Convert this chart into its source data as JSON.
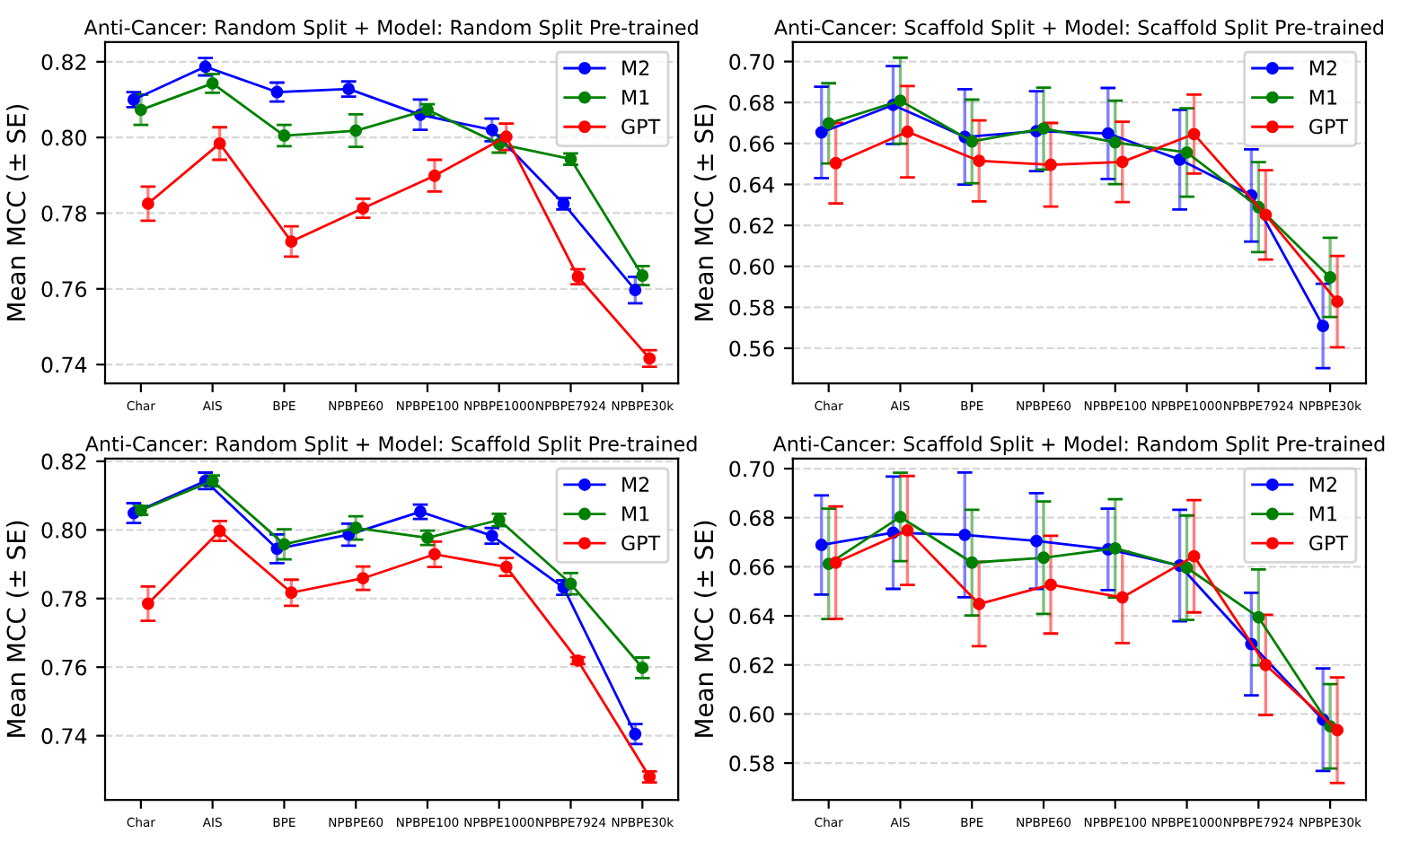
{
  "chart_data": [
    {
      "type": "line",
      "title": "Anti-Cancer: Random Split + Model: Random Split Pre-trained",
      "ylabel": "Mean MCC (± SE)",
      "categories": [
        "Char",
        "AIS",
        "BPE",
        "NPBPE60",
        "NPBPE100",
        "NPBPE1000",
        "NPBPE7924",
        "NPBPE30k"
      ],
      "ylim": [
        0.735,
        0.8252
      ],
      "yticks": [
        {
          "value": 0.74,
          "label": "0.74"
        },
        {
          "value": 0.76,
          "label": "0.76"
        },
        {
          "value": 0.78,
          "label": "0.78"
        },
        {
          "value": 0.8,
          "label": "0.80"
        },
        {
          "value": 0.82,
          "label": "0.82"
        }
      ],
      "grid": "y",
      "legend": "top right",
      "marker": "circle",
      "line_style": "solid",
      "series": [
        {
          "name": "M2",
          "color": "#0000ff",
          "values": [
            0.81,
            0.8187,
            0.812,
            0.8128,
            0.806,
            0.802,
            0.7825,
            0.7597
          ],
          "errors": [
            0.002,
            0.0023,
            0.0025,
            0.002,
            0.004,
            0.003,
            0.0015,
            0.0035
          ]
        },
        {
          "name": "M1",
          "color": "#008000",
          "values": [
            0.8073,
            0.8143,
            0.8005,
            0.8018,
            0.8073,
            0.7983,
            0.7943,
            0.7635
          ],
          "errors": [
            0.004,
            0.0025,
            0.0028,
            0.0043,
            0.0015,
            0.0023,
            0.0015,
            0.0025
          ]
        },
        {
          "name": "GPT",
          "color": "#ff0000",
          "values": [
            0.7825,
            0.7984,
            0.7725,
            0.7813,
            0.7899,
            0.8002,
            0.7632,
            0.7416
          ],
          "errors": [
            0.0045,
            0.0043,
            0.004,
            0.0025,
            0.0042,
            0.0035,
            0.002,
            0.0022
          ]
        }
      ]
    },
    {
      "type": "line",
      "title": "Anti-Cancer: Scaffold Split + Model: Scaffold Split Pre-trained",
      "ylabel": "Mean MCC (± SE)",
      "categories": [
        "Char",
        "AIS",
        "BPE",
        "NPBPE60",
        "NPBPE100",
        "NPBPE1000",
        "NPBPE7924",
        "NPBPE30k"
      ],
      "ylim": [
        0.5428,
        0.7095
      ],
      "yticks": [
        {
          "value": 0.56,
          "label": "0.56"
        },
        {
          "value": 0.58,
          "label": "0.58"
        },
        {
          "value": 0.6,
          "label": "0.60"
        },
        {
          "value": 0.62,
          "label": "0.62"
        },
        {
          "value": 0.64,
          "label": "0.64"
        },
        {
          "value": 0.66,
          "label": "0.66"
        },
        {
          "value": 0.68,
          "label": "0.68"
        },
        {
          "value": 0.7,
          "label": "0.70"
        }
      ],
      "grid": "y",
      "legend": "top right",
      "marker": "circle",
      "line_style": "solid",
      "series": [
        {
          "name": "M2",
          "color": "#0000ff",
          "values": [
            0.6654,
            0.6788,
            0.6632,
            0.666,
            0.6649,
            0.6521,
            0.6346,
            0.5709
          ],
          "errors": [
            0.0223,
            0.019,
            0.0233,
            0.0195,
            0.0222,
            0.0243,
            0.0225,
            0.0206
          ]
        },
        {
          "name": "M1",
          "color": "#008000",
          "values": [
            0.6698,
            0.6809,
            0.661,
            0.6673,
            0.6605,
            0.6556,
            0.6289,
            0.5946
          ],
          "errors": [
            0.0196,
            0.021,
            0.0204,
            0.02,
            0.0204,
            0.0216,
            0.022,
            0.0193
          ]
        },
        {
          "name": "GPT",
          "color": "#ff0000",
          "values": [
            0.6504,
            0.6657,
            0.6515,
            0.6496,
            0.651,
            0.6646,
            0.6251,
            0.5828
          ],
          "errors": [
            0.0197,
            0.0223,
            0.0198,
            0.0204,
            0.0196,
            0.0193,
            0.0218,
            0.0223
          ]
        }
      ]
    },
    {
      "type": "line",
      "title": "Anti-Cancer: Random Split + Model: Scaffold Split Pre-trained",
      "ylabel": "Mean MCC (± SE)",
      "categories": [
        "Char",
        "AIS",
        "BPE",
        "NPBPE60",
        "NPBPE100",
        "NPBPE1000",
        "NPBPE7924",
        "NPBPE30k"
      ],
      "ylim": [
        0.7213,
        0.8208
      ],
      "yticks": [
        {
          "value": 0.74,
          "label": "0.74"
        },
        {
          "value": 0.76,
          "label": "0.76"
        },
        {
          "value": 0.78,
          "label": "0.78"
        },
        {
          "value": 0.8,
          "label": "0.80"
        },
        {
          "value": 0.82,
          "label": "0.82"
        }
      ],
      "grid": "y",
      "legend": "top right",
      "marker": "circle",
      "line_style": "solid",
      "series": [
        {
          "name": "M2",
          "color": "#0000ff",
          "values": [
            0.8049,
            0.8143,
            0.7945,
            0.7986,
            0.8053,
            0.7983,
            0.7832,
            0.7405
          ],
          "errors": [
            0.0029,
            0.0024,
            0.0042,
            0.0032,
            0.0021,
            0.0023,
            0.0021,
            0.0029
          ]
        },
        {
          "name": "M1",
          "color": "#008000",
          "values": [
            0.8057,
            0.8143,
            0.7958,
            0.8006,
            0.7977,
            0.8029,
            0.7843,
            0.7598
          ],
          "errors": [
            0.0013,
            0.0016,
            0.0044,
            0.0034,
            0.0021,
            0.0018,
            0.0031,
            0.003
          ]
        },
        {
          "name": "GPT",
          "color": "#ff0000",
          "values": [
            0.7785,
            0.7997,
            0.7817,
            0.7859,
            0.7929,
            0.7892,
            0.7619,
            0.728
          ],
          "errors": [
            0.005,
            0.0029,
            0.0038,
            0.0034,
            0.0037,
            0.0026,
            0.001,
            0.0016
          ]
        }
      ]
    },
    {
      "type": "line",
      "title": "Anti-Cancer: Scaffold Split + Model: Random Split Pre-trained",
      "ylabel": "Mean MCC (± SE)",
      "categories": [
        "Char",
        "AIS",
        "BPE",
        "NPBPE60",
        "NPBPE100",
        "NPBPE1000",
        "NPBPE7924",
        "NPBPE30k"
      ],
      "ylim": [
        0.565,
        0.7041
      ],
      "yticks": [
        {
          "value": 0.58,
          "label": "0.58"
        },
        {
          "value": 0.6,
          "label": "0.60"
        },
        {
          "value": 0.62,
          "label": "0.62"
        },
        {
          "value": 0.64,
          "label": "0.64"
        },
        {
          "value": 0.66,
          "label": "0.66"
        },
        {
          "value": 0.68,
          "label": "0.68"
        },
        {
          "value": 0.7,
          "label": "0.70"
        }
      ],
      "grid": "y",
      "legend": "top right",
      "marker": "circle",
      "line_style": "solid",
      "series": [
        {
          "name": "M2",
          "color": "#0000ff",
          "values": [
            0.6689,
            0.6739,
            0.673,
            0.6705,
            0.6671,
            0.6605,
            0.6285,
            0.5977
          ],
          "errors": [
            0.0202,
            0.0229,
            0.0254,
            0.0195,
            0.0166,
            0.0227,
            0.0209,
            0.0209
          ]
        },
        {
          "name": "M1",
          "color": "#008000",
          "values": [
            0.6612,
            0.6803,
            0.6617,
            0.6637,
            0.6675,
            0.6596,
            0.6394,
            0.595
          ],
          "errors": [
            0.0225,
            0.018,
            0.0215,
            0.0229,
            0.02,
            0.0213,
            0.0195,
            0.0172
          ]
        },
        {
          "name": "GPT",
          "color": "#ff0000",
          "values": [
            0.6617,
            0.6748,
            0.6448,
            0.6527,
            0.6475,
            0.6643,
            0.62,
            0.5934
          ],
          "errors": [
            0.0229,
            0.0222,
            0.0172,
            0.0199,
            0.0186,
            0.0229,
            0.0204,
            0.0215
          ]
        }
      ]
    }
  ]
}
